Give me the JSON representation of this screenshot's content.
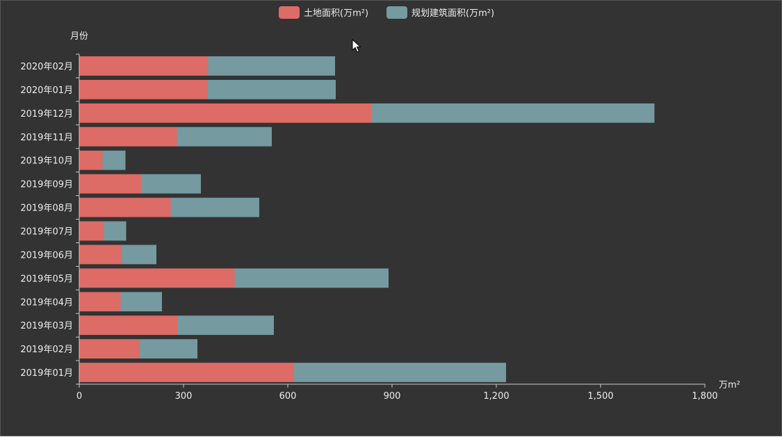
{
  "chart_data": {
    "type": "bar",
    "orientation": "horizontal",
    "stacked": true,
    "title": "",
    "xlabel": "万m²",
    "ylabel": "月份",
    "xlim": [
      0,
      1800
    ],
    "x_ticks": [
      0,
      300,
      600,
      900,
      1200,
      1500,
      1800
    ],
    "x_tick_labels": [
      "0",
      "300",
      "600",
      "900",
      "1,200",
      "1,500",
      "1,800"
    ],
    "legend_position": "top-center",
    "grid": false,
    "categories": [
      "2019年01月",
      "2019年02月",
      "2019年03月",
      "2019年04月",
      "2019年05月",
      "2019年06月",
      "2019年07月",
      "2019年08月",
      "2019年09月",
      "2019年10月",
      "2019年11月",
      "2019年12月",
      "2020年01月",
      "2020年02月"
    ],
    "series": [
      {
        "name": "土地面积(万m²)",
        "color": "#dd6b66",
        "values": [
          617,
          173,
          282,
          119,
          447,
          121,
          71,
          263,
          179,
          67,
          281,
          840,
          369,
          371
        ]
      },
      {
        "name": "规划建筑面积(万m²)",
        "color": "#759aa0",
        "values": [
          611,
          167,
          278,
          119,
          443,
          101,
          64,
          255,
          171,
          66,
          273,
          815,
          369,
          365
        ]
      }
    ]
  },
  "colors": {
    "background": "#333333",
    "text": "#eeeeee",
    "axis": "#cccccc"
  }
}
